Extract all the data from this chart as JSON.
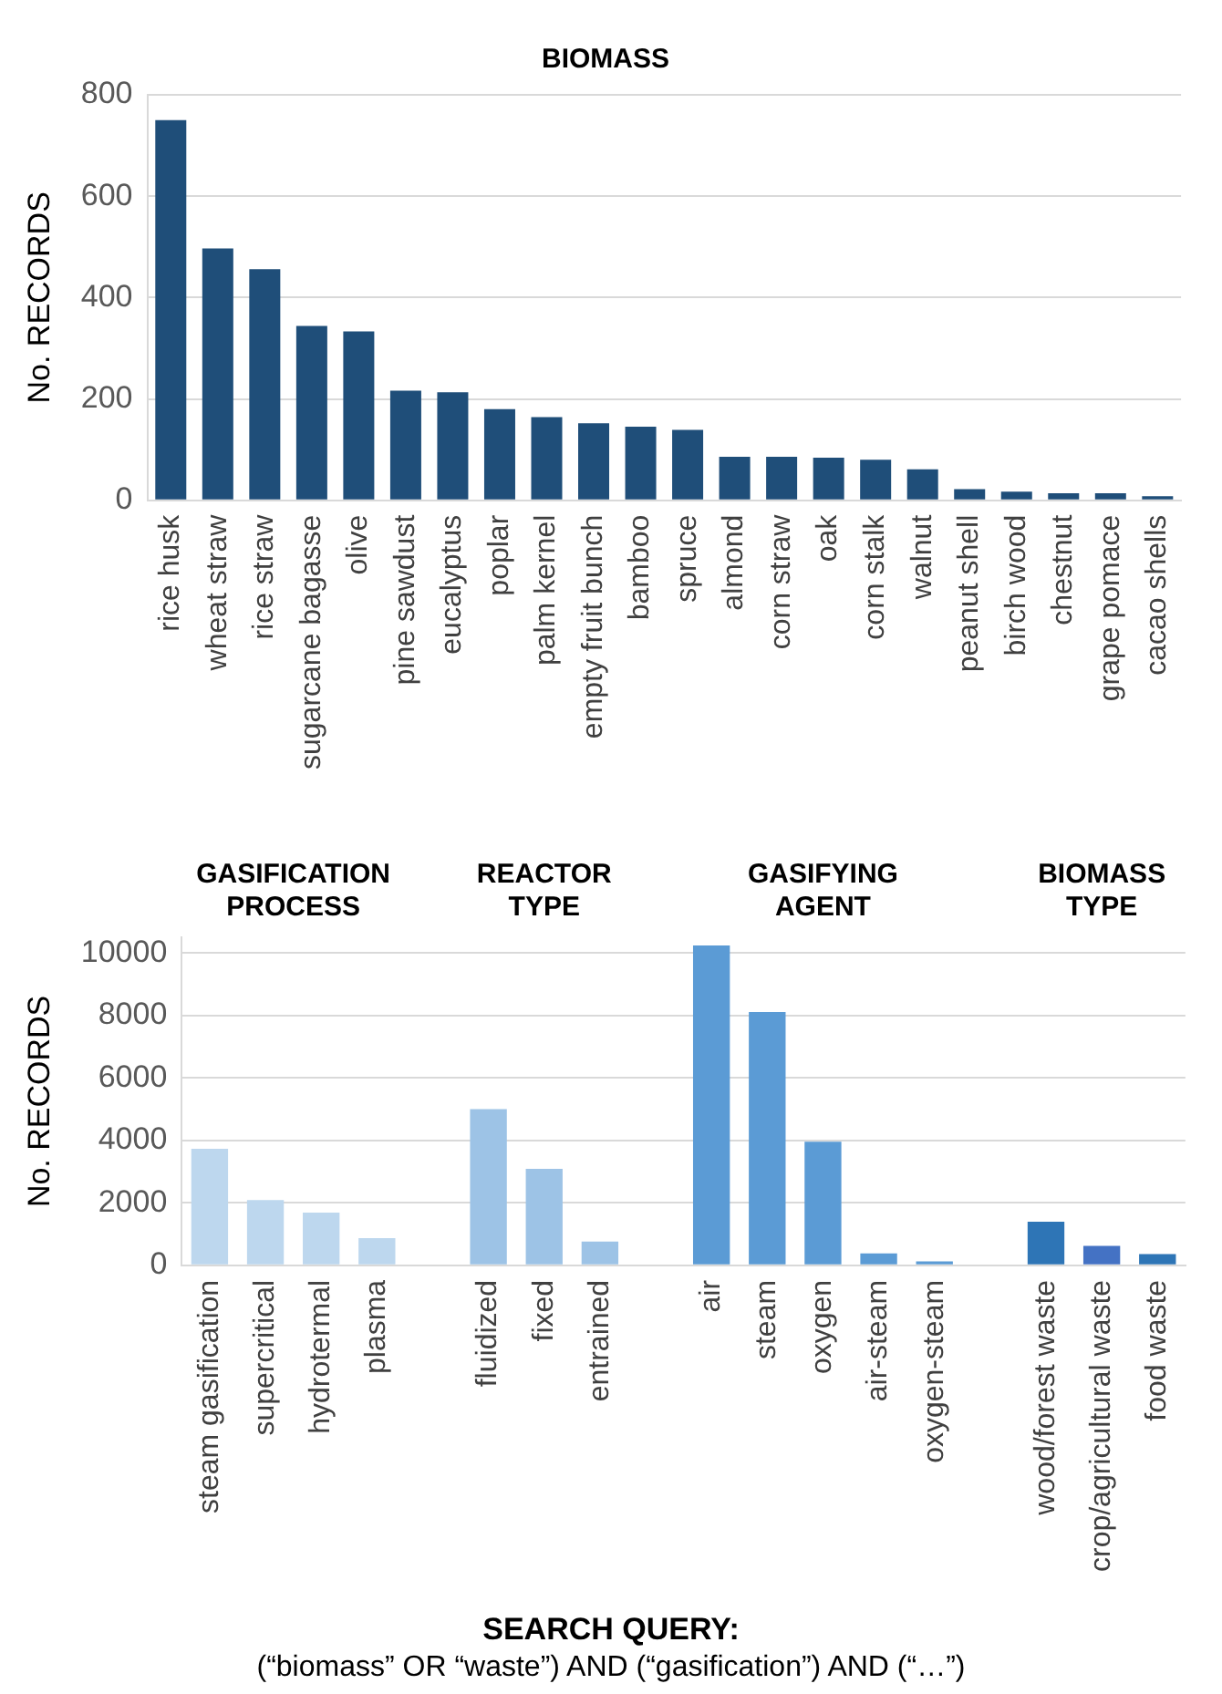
{
  "chart_data": [
    {
      "type": "bar",
      "title": "BIOMASS",
      "ylabel": "No. RECORDS",
      "categories": [
        "rice husk",
        "wheat straw",
        "rice straw",
        "sugarcane bagasse",
        "olive",
        "pine sawdust",
        "eucalyptus",
        "poplar",
        "palm kernel",
        "empty fruit bunch",
        "bamboo",
        "spruce",
        "almond",
        "corn straw",
        "oak",
        "corn stalk",
        "walnut",
        "peanut shell",
        "birch wood",
        "chestnut",
        "grape pomace",
        "cacao shells"
      ],
      "values": [
        750,
        497,
        456,
        344,
        333,
        216,
        213,
        180,
        164,
        152,
        145,
        139,
        86,
        86,
        84,
        80,
        61,
        22,
        17,
        14,
        14,
        8
      ],
      "color": "#1f4e79",
      "ylim": [
        0,
        800
      ],
      "yticks": [
        0,
        200,
        400,
        600,
        800
      ],
      "grid": "y",
      "legend": false
    },
    {
      "type": "bar",
      "ylabel": "No. RECORDS",
      "categories": [
        "steam gasification",
        "supercritical",
        "hydrotermal",
        "plasma",
        null,
        "fluidized",
        "fixed",
        "entrained",
        null,
        "air",
        "steam",
        "oxygen",
        "air-steam",
        "oxygen-steam",
        null,
        "wood/forest waste",
        "crop/agricultural waste",
        "food waste"
      ],
      "values": [
        3730,
        2090,
        1690,
        870,
        null,
        5000,
        3090,
        760,
        null,
        10240,
        8110,
        3960,
        380,
        130,
        null,
        1400,
        620,
        360
      ],
      "colors": [
        "#bdd7ee",
        "#bdd7ee",
        "#bdd7ee",
        "#bdd7ee",
        null,
        "#9dc3e6",
        "#9dc3e6",
        "#9dc3e6",
        null,
        "#5b9bd5",
        "#5b9bd5",
        "#5b9bd5",
        "#5b9bd5",
        "#5b9bd5",
        null,
        "#2e75b6",
        "#4472c4",
        "#2e75b6"
      ],
      "ylim": [
        0,
        10500
      ],
      "yticks": [
        0,
        2000,
        4000,
        6000,
        8000,
        10000
      ],
      "grid": "y",
      "legend": false,
      "annotations": [
        "GASIFICATION PROCESS",
        "REACTOR TYPE",
        "GASIFYING AGENT",
        "BIOMASS TYPE",
        "SEARCH QUERY:",
        "(“biomass” OR “waste”) AND (“gasification”) AND (“…”)"
      ]
    }
  ]
}
